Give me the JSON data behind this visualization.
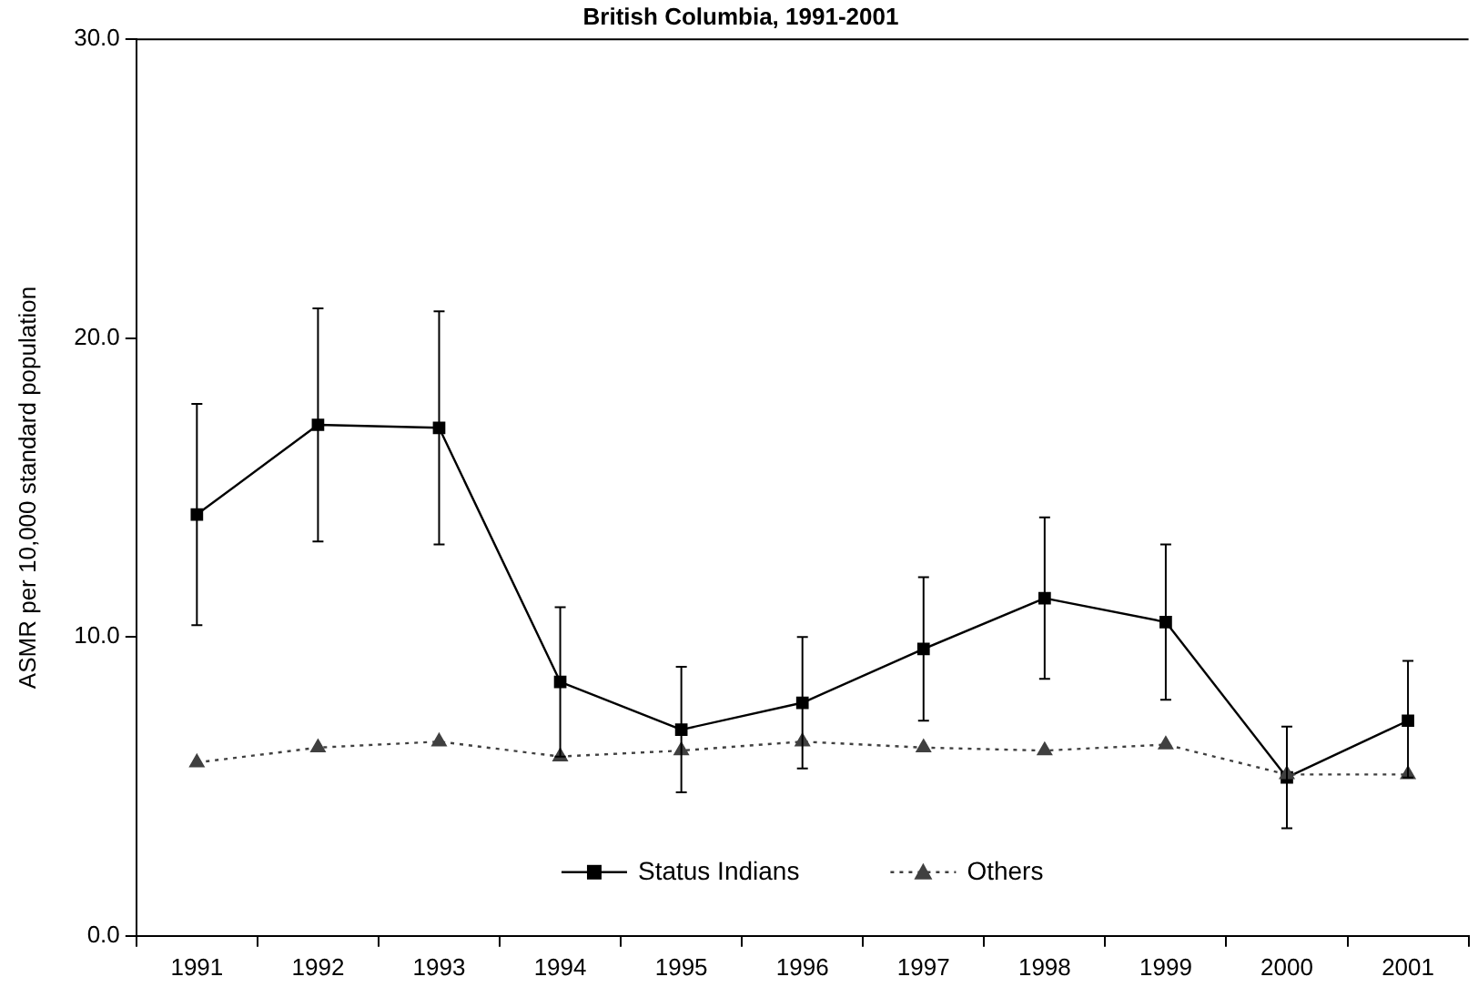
{
  "chart_data": {
    "type": "line",
    "title": "British Columbia, 1991-2001",
    "ylabel": "ASMR per 10,000 standard population",
    "categories": [
      "1991",
      "1992",
      "1993",
      "1994",
      "1995",
      "1996",
      "1997",
      "1998",
      "1999",
      "2000",
      "2001"
    ],
    "series": [
      {
        "name": "Status Indians",
        "color": "#000000",
        "marker": "square",
        "line_style": "solid",
        "values": [
          14.1,
          17.1,
          17.0,
          8.5,
          6.9,
          7.8,
          9.6,
          11.3,
          10.5,
          5.3,
          7.2
        ],
        "errors": [
          [
            10.4,
            17.8
          ],
          [
            13.2,
            21.0
          ],
          [
            13.1,
            20.9
          ],
          [
            6.0,
            11.0
          ],
          [
            4.8,
            9.0
          ],
          [
            5.6,
            10.0
          ],
          [
            7.2,
            12.0
          ],
          [
            8.6,
            14.0
          ],
          [
            7.9,
            13.1
          ],
          [
            3.6,
            7.0
          ],
          [
            5.3,
            9.2
          ]
        ]
      },
      {
        "name": "Others",
        "color": "#404040",
        "marker": "triangle",
        "line_style": "dotted",
        "values": [
          5.8,
          6.3,
          6.5,
          6.0,
          6.2,
          6.5,
          6.3,
          6.2,
          6.4,
          5.4,
          5.4
        ]
      }
    ],
    "ylim": [
      0,
      30
    ],
    "yticks": [
      {
        "value": 0,
        "label": "0.0"
      },
      {
        "value": 10,
        "label": "10.0"
      },
      {
        "value": 20,
        "label": "20.0"
      },
      {
        "value": 30,
        "label": "30.0"
      }
    ],
    "grid": false,
    "legend": "bottom"
  }
}
